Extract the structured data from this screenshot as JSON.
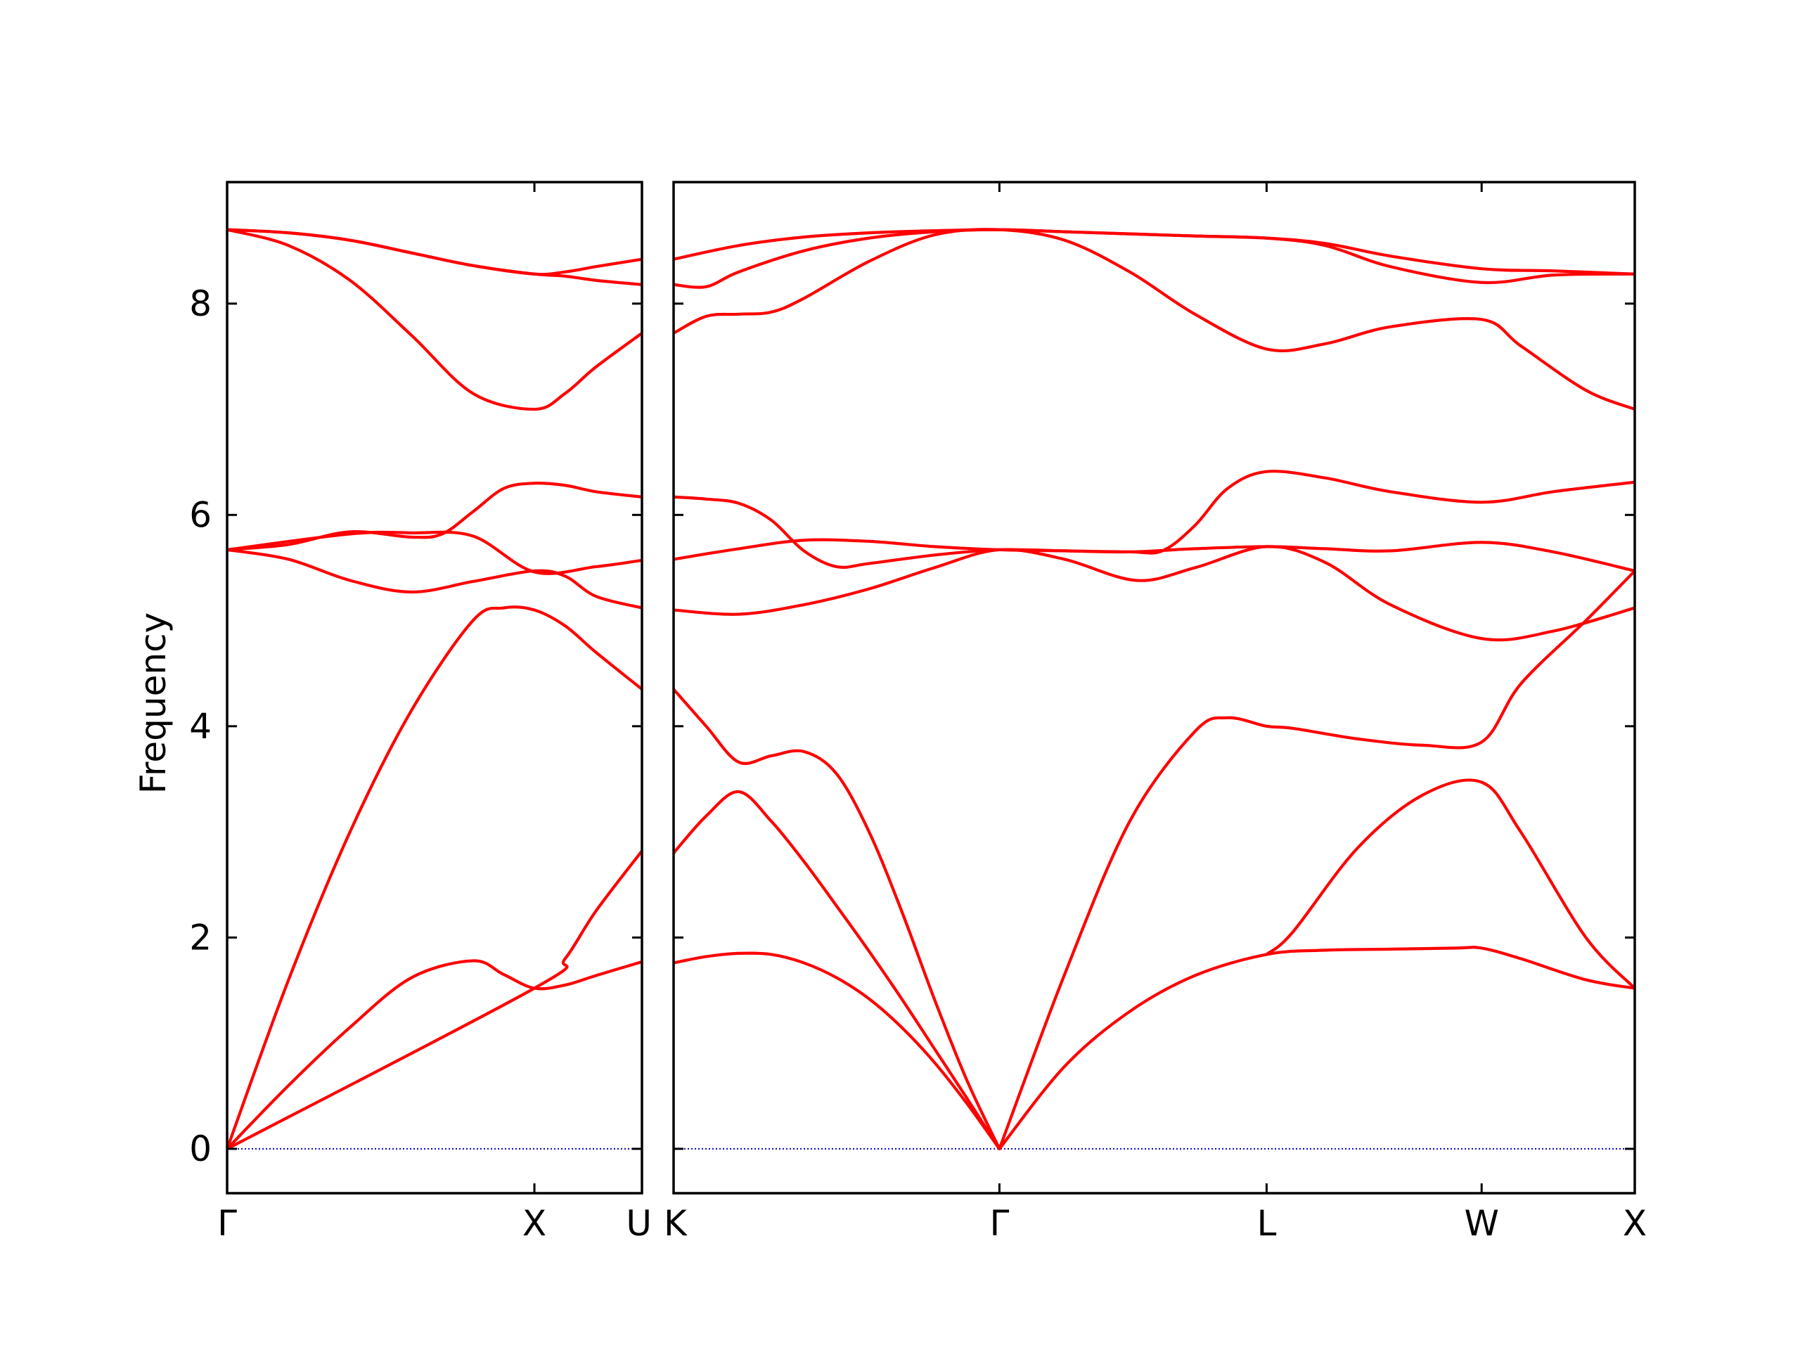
{
  "chart_data": {
    "type": "line",
    "ylabel": "Frequency",
    "ylim": [
      -0.42,
      9.15
    ],
    "y_ticks": [
      0,
      2,
      4,
      6,
      8
    ],
    "line_color": "#ff0000",
    "zero_line_color": "#0000cc",
    "grid": false,
    "legend": "none",
    "segments": [
      {
        "xlim": [
          0,
          1.35
        ],
        "x_ticks": [
          {
            "x": 0,
            "label": "Γ"
          },
          {
            "x": 1.0,
            "label": "X"
          },
          {
            "x": 1.35,
            "label": "U"
          }
        ],
        "bands": [
          {
            "x": [
              0,
              0.2,
              0.4,
              0.6,
              0.8,
              0.9,
              1.0,
              1.1,
              1.2,
              1.35
            ],
            "y": [
              0,
              0.6,
              1.15,
              1.62,
              1.78,
              1.65,
              1.52,
              1.55,
              1.64,
              1.77
            ]
          },
          {
            "x": [
              0,
              0.2,
              0.4,
              0.6,
              0.8,
              0.9,
              1.0,
              1.1,
              1.2,
              1.35
            ],
            "y": [
              0,
              1.6,
              3.0,
              4.15,
              5.0,
              5.12,
              5.1,
              4.95,
              4.7,
              4.35
            ]
          },
          {
            "x": [
              0,
              1.0,
              1.1,
              1.2,
              1.35
            ],
            "y": [
              0,
              1.52,
              1.8,
              2.25,
              2.82
            ]
          },
          {
            "x": [
              0,
              0.2,
              0.4,
              0.6,
              0.8,
              1.0,
              1.1,
              1.2,
              1.35
            ],
            "y": [
              5.67,
              5.58,
              5.38,
              5.27,
              5.37,
              5.47,
              5.42,
              5.23,
              5.12
            ]
          },
          {
            "x": [
              0,
              0.4,
              0.6,
              0.8,
              1.0,
              1.2,
              1.35
            ],
            "y": [
              5.67,
              5.82,
              5.83,
              5.8,
              5.46,
              5.51,
              5.57
            ]
          },
          {
            "x": [
              0,
              0.2,
              0.4,
              0.6,
              0.7,
              0.8,
              0.9,
              1.0,
              1.1,
              1.2,
              1.35
            ],
            "y": [
              5.67,
              5.72,
              5.84,
              5.79,
              5.82,
              6.03,
              6.25,
              6.3,
              6.28,
              6.22,
              6.17
            ]
          },
          {
            "x": [
              0,
              0.2,
              0.4,
              0.6,
              0.8,
              1.0,
              1.1,
              1.2,
              1.35
            ],
            "y": [
              8.7,
              8.55,
              8.22,
              7.7,
              7.15,
              7.0,
              7.15,
              7.4,
              7.72
            ]
          },
          {
            "x": [
              0,
              0.2,
              0.4,
              0.6,
              0.8,
              1.0,
              1.1,
              1.2,
              1.35
            ],
            "y": [
              8.7,
              8.67,
              8.6,
              8.48,
              8.36,
              8.28,
              8.26,
              8.22,
              8.18
            ]
          },
          {
            "x": [
              0,
              0.2,
              0.4,
              0.6,
              0.8,
              1.0,
              1.1,
              1.2,
              1.35
            ],
            "y": [
              8.7,
              8.67,
              8.6,
              8.48,
              8.36,
              8.28,
              8.3,
              8.35,
              8.42
            ]
          }
        ]
      },
      {
        "xlim": [
          0,
          2.95
        ],
        "x_ticks": [
          {
            "x": 0,
            "label": "K"
          },
          {
            "x": 1.0,
            "label": "Γ"
          },
          {
            "x": 1.82,
            "label": "L"
          },
          {
            "x": 2.48,
            "label": "W"
          },
          {
            "x": 2.95,
            "label": "X"
          }
        ],
        "bands": [
          {
            "x": [
              0,
              0.1,
              0.2,
              0.3,
              0.4,
              0.5,
              0.6,
              0.7,
              0.8,
              0.9,
              1.0
            ],
            "y": [
              1.76,
              1.82,
              1.85,
              1.84,
              1.76,
              1.62,
              1.42,
              1.15,
              0.82,
              0.43,
              0
            ]
          },
          {
            "x": [
              0,
              0.1,
              0.2,
              0.3,
              0.4,
              0.5,
              0.6,
              0.7,
              0.8,
              0.9,
              1.0
            ],
            "y": [
              2.8,
              3.15,
              3.38,
              3.1,
              2.72,
              2.3,
              1.87,
              1.42,
              0.95,
              0.48,
              0
            ]
          },
          {
            "x": [
              0,
              0.1,
              0.2,
              0.3,
              0.4,
              0.5,
              0.6,
              0.7,
              0.8,
              0.9,
              1.0
            ],
            "y": [
              4.35,
              4.0,
              3.66,
              3.72,
              3.76,
              3.55,
              3.0,
              2.25,
              1.42,
              0.65,
              0
            ]
          },
          {
            "x": [
              1.0,
              1.2,
              1.4,
              1.6,
              1.82,
              2.0,
              2.2,
              2.4,
              2.48,
              2.6,
              2.8,
              2.95
            ],
            "y": [
              0,
              0.78,
              1.3,
              1.64,
              1.84,
              1.88,
              1.89,
              1.9,
              1.9,
              1.8,
              1.6,
              1.52
            ]
          },
          {
            "x": [
              1.0,
              1.2,
              1.4,
              1.6,
              1.7,
              1.82,
              1.9,
              2.1,
              2.3,
              2.48,
              2.6,
              2.8,
              2.95
            ],
            "y": [
              0,
              1.65,
              3.1,
              3.95,
              4.08,
              4.0,
              3.98,
              3.88,
              3.82,
              3.85,
              4.4,
              5.0,
              5.47
            ]
          },
          {
            "x": [
              1.82,
              1.9,
              2.1,
              2.3,
              2.48,
              2.6,
              2.8,
              2.95
            ],
            "y": [
              1.84,
              2.05,
              2.85,
              3.35,
              3.47,
              3.0,
              2.0,
              1.52
            ]
          },
          {
            "x": [
              0,
              0.2,
              0.4,
              0.6,
              0.8,
              1.0,
              1.2,
              1.42,
              1.6,
              1.82,
              2.0,
              2.2,
              2.48,
              2.7,
              2.95
            ],
            "y": [
              5.1,
              5.06,
              5.15,
              5.3,
              5.5,
              5.67,
              5.58,
              5.38,
              5.5,
              5.7,
              5.55,
              5.15,
              4.83,
              4.9,
              5.12
            ]
          },
          {
            "x": [
              0,
              0.2,
              0.4,
              0.6,
              0.8,
              1.0,
              1.2,
              1.4,
              1.6,
              1.82,
              2.0,
              2.2,
              2.48,
              2.7,
              2.95
            ],
            "y": [
              5.58,
              5.68,
              5.76,
              5.75,
              5.7,
              5.67,
              5.66,
              5.65,
              5.68,
              5.7,
              5.68,
              5.66,
              5.74,
              5.65,
              5.47
            ]
          },
          {
            "x": [
              0,
              0.1,
              0.2,
              0.3,
              0.4,
              0.5,
              0.6,
              0.8,
              1.0,
              1.2,
              1.4,
              1.5,
              1.6,
              1.7,
              1.82,
              2.0,
              2.2,
              2.48,
              2.7,
              2.95
            ],
            "y": [
              6.17,
              6.15,
              6.11,
              5.95,
              5.66,
              5.51,
              5.54,
              5.62,
              5.67,
              5.66,
              5.65,
              5.66,
              5.9,
              6.25,
              6.41,
              6.35,
              6.22,
              6.12,
              6.22,
              6.31
            ]
          },
          {
            "x": [
              0,
              0.1,
              0.2,
              0.3,
              0.4,
              0.6,
              0.8,
              1.0,
              1.2,
              1.4,
              1.6,
              1.82,
              2.0,
              2.2,
              2.48,
              2.6,
              2.8,
              2.95
            ],
            "y": [
              7.72,
              7.88,
              7.9,
              7.92,
              8.05,
              8.4,
              8.65,
              8.7,
              8.6,
              8.3,
              7.9,
              7.57,
              7.62,
              7.78,
              7.85,
              7.6,
              7.18,
              7.0
            ]
          },
          {
            "x": [
              0,
              0.1,
              0.2,
              0.4,
              0.6,
              0.8,
              1.0,
              1.2,
              1.4,
              1.6,
              1.82,
              2.0,
              2.2,
              2.48,
              2.7,
              2.95
            ],
            "y": [
              8.18,
              8.16,
              8.3,
              8.5,
              8.62,
              8.68,
              8.7,
              8.68,
              8.66,
              8.64,
              8.62,
              8.55,
              8.35,
              8.2,
              8.27,
              8.28
            ]
          },
          {
            "x": [
              0,
              0.2,
              0.4,
              0.6,
              0.8,
              1.0,
              1.2,
              1.4,
              1.6,
              1.82,
              2.0,
              2.2,
              2.48,
              2.7,
              2.95
            ],
            "y": [
              8.42,
              8.55,
              8.63,
              8.67,
              8.69,
              8.7,
              8.68,
              8.66,
              8.64,
              8.62,
              8.57,
              8.45,
              8.33,
              8.31,
              8.28
            ]
          }
        ]
      }
    ]
  }
}
